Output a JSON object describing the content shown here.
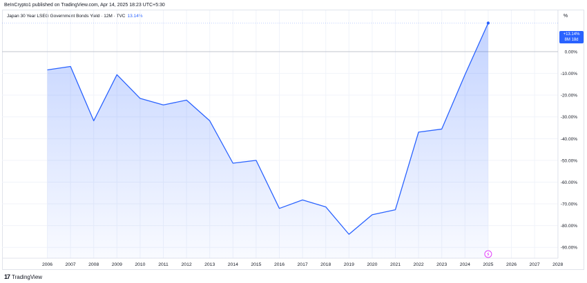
{
  "header": {
    "published": "BeInCrypto1 published on TradingView.com, Apr 14, 2025 18:23 UTC+5:30"
  },
  "legend": {
    "symbol": "Japan 30 Year LSEG Government Bonds Yield · 12M · TVC",
    "last_value": "13.14%"
  },
  "scale_button": "%",
  "price_badge": {
    "value": "+13.14%",
    "countdown": "8M 18d"
  },
  "footer": {
    "brand": "TradingView",
    "logo_glyph": "17"
  },
  "colors": {
    "line": "#2962ff",
    "badge": "#2962ff",
    "baseline": "#b2b5be",
    "grid": "#f0f3fa"
  },
  "chart_data": {
    "type": "area",
    "title": "Japan 30 Year LSEG Government Bonds Yield · 12M · TVC",
    "x": [
      "2006",
      "2007",
      "2008",
      "2009",
      "2010",
      "2011",
      "2012",
      "2013",
      "2014",
      "2015",
      "2016",
      "2017",
      "2018",
      "2019",
      "2020",
      "2021",
      "2022",
      "2023",
      "2024",
      "2025"
    ],
    "values": [
      -8.4,
      -6.8,
      -31.8,
      -10.6,
      -21.5,
      -24.5,
      -22.3,
      -31.8,
      -51.3,
      -50.0,
      -72.1,
      -68.2,
      -71.4,
      -84.0,
      -75.0,
      -72.7,
      -37.0,
      -35.6,
      -10.6,
      13.14
    ],
    "x_ticks": [
      "2006",
      "2007",
      "2008",
      "2009",
      "2010",
      "2011",
      "2012",
      "2013",
      "2014",
      "2015",
      "2016",
      "2017",
      "2018",
      "2019",
      "2020",
      "2021",
      "2022",
      "2023",
      "2024",
      "2025",
      "2026",
      "2027",
      "2028"
    ],
    "y_ticks": [
      "0.00%",
      "-10.00%",
      "-20.00%",
      "-30.00%",
      "-40.00%",
      "-50.00%",
      "-60.00%",
      "-70.00%",
      "-80.00%",
      "-90.00%"
    ],
    "y_tick_values": [
      0,
      -10,
      -20,
      -30,
      -40,
      -50,
      -60,
      -70,
      -80,
      -90
    ],
    "ylim": [
      -95,
      19
    ],
    "y_axis_side": "right",
    "grid": true,
    "baseline": 0,
    "current_marker": "2025"
  }
}
